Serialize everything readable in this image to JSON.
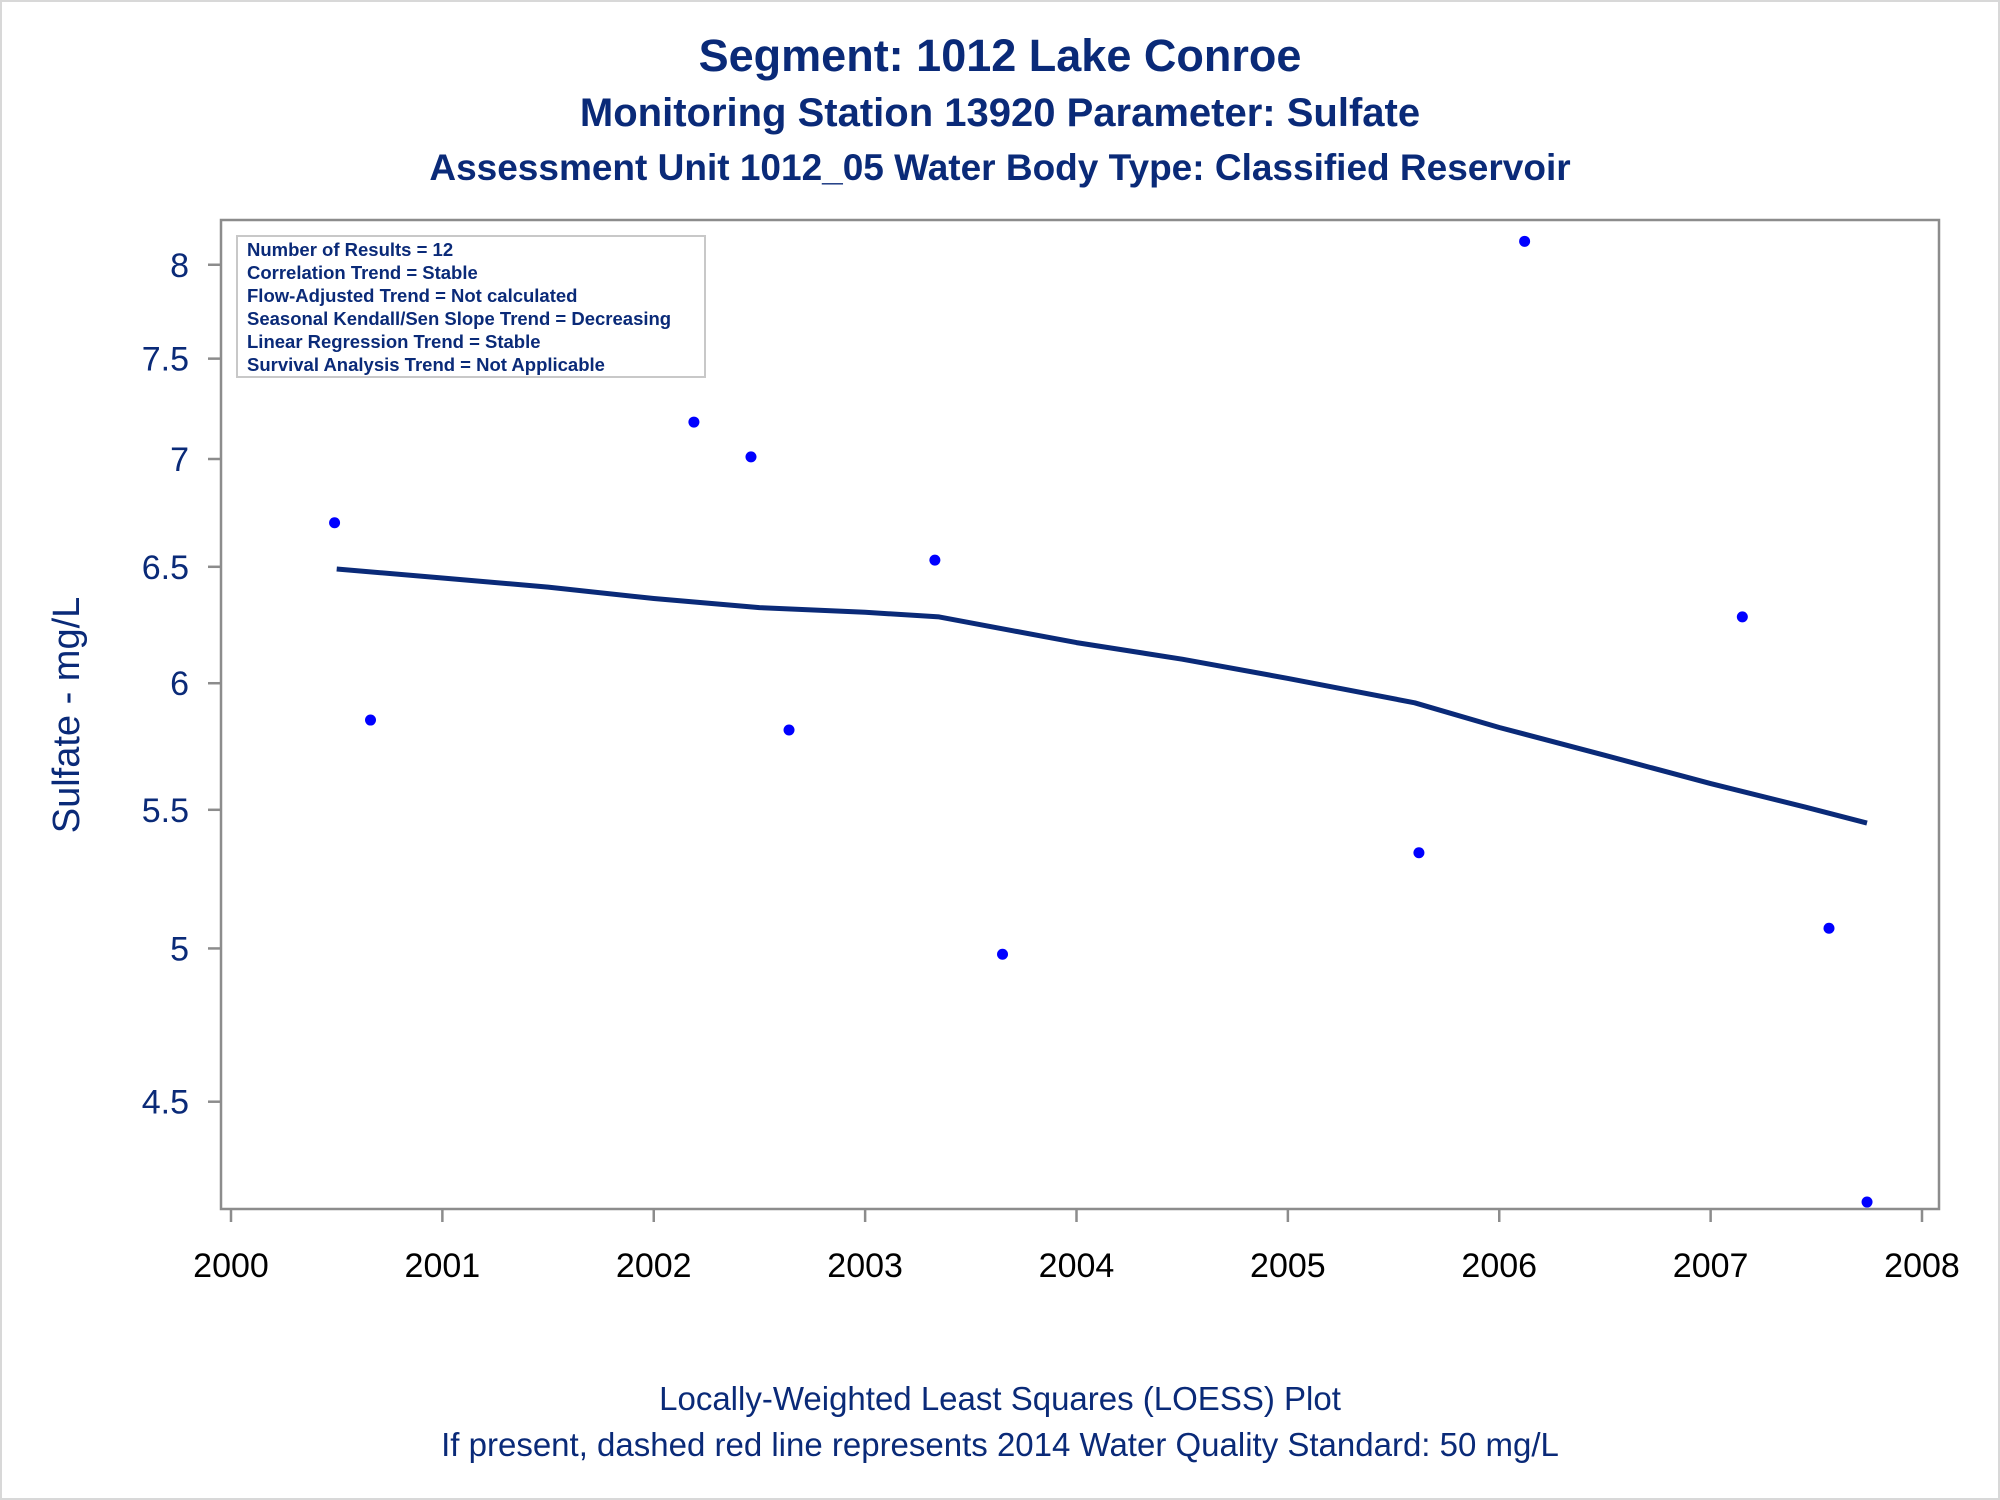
{
  "title": {
    "line1": "Segment: 1012  Lake Conroe",
    "line2": "Monitoring Station 13920 Parameter: Sulfate",
    "line3": "Assessment Unit 1012_05   Water Body Type: Classified Reservoir"
  },
  "footer": {
    "line1": "Locally-Weighted Least Squares (LOESS) Plot",
    "line2": "If present, dashed red line represents 2014 Water Quality Standard: 50    mg/L"
  },
  "stats_box": {
    "lines": [
      "Number of Results = 12",
      "Correlation Trend = Stable",
      "Flow-Adjusted Trend = Not calculated",
      "Seasonal Kendall/Sen Slope Trend = Decreasing",
      "Linear Regression Trend = Stable",
      "Survival Analysis Trend = Not Applicable"
    ]
  },
  "chart_data": {
    "type": "scatter",
    "ylabel": "Sulfate - mg/L",
    "xlabel": "",
    "y_scale": "log",
    "xlim": [
      2000,
      2008
    ],
    "ylim": [
      4.18,
      8.25
    ],
    "x_ticks": [
      2000,
      2001,
      2002,
      2003,
      2004,
      2005,
      2006,
      2007,
      2008
    ],
    "x_tick_labels": [
      "2000",
      "2001",
      "2002",
      "2003",
      "2004",
      "2005",
      "2006",
      "2007",
      "2008"
    ],
    "y_ticks": [
      4.5,
      5,
      5.5,
      6,
      6.5,
      7,
      7.5,
      8
    ],
    "y_tick_labels": [
      "4.5",
      "5",
      "5.5",
      "6",
      "6.5",
      "7",
      "7.5",
      "8"
    ],
    "grid": false,
    "legend": "none",
    "series": [
      {
        "kind": "points",
        "color": "#0000ff",
        "x": [
          2000.49,
          2000.66,
          2002.19,
          2002.46,
          2002.64,
          2003.33,
          2003.65,
          2005.62,
          2006.12,
          2007.15,
          2007.56,
          2007.74
        ],
        "y": [
          6.7,
          5.85,
          7.18,
          7.01,
          5.81,
          6.53,
          4.98,
          5.34,
          8.13,
          6.28,
          5.07,
          4.2
        ]
      },
      {
        "kind": "loess-line",
        "color": "#0a2a78",
        "x": [
          2000.5,
          2001.0,
          2001.5,
          2002.0,
          2002.5,
          2003.0,
          2003.35,
          2003.7,
          2004.0,
          2004.5,
          2005.0,
          2005.6,
          2006.0,
          2006.5,
          2007.0,
          2007.45,
          2007.74
        ],
        "y": [
          6.49,
          6.45,
          6.41,
          6.36,
          6.32,
          6.3,
          6.28,
          6.22,
          6.17,
          6.1,
          6.02,
          5.92,
          5.82,
          5.71,
          5.6,
          5.51,
          5.45
        ]
      }
    ]
  }
}
